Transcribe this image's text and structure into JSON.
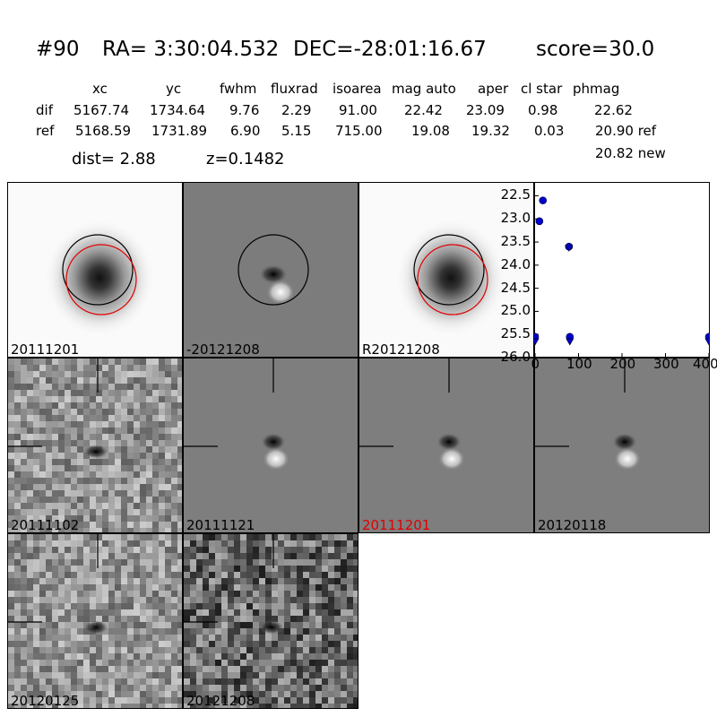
{
  "header": {
    "object_id": "#90",
    "ra": "RA= 3:30:04.532",
    "dec": "DEC=-28:01:16.67",
    "score": "score=30.0"
  },
  "table": {
    "columns": [
      "xc",
      "yc",
      "fwhm",
      "fluxrad",
      "isoarea",
      "mag auto",
      "aper",
      "cl star",
      "phmag"
    ],
    "dif": {
      "label": "dif",
      "values": [
        "5167.74",
        "1734.64",
        "9.76",
        "2.29",
        "91.00",
        "22.42",
        "23.09",
        "0.98",
        "22.62"
      ]
    },
    "ref": {
      "label": "ref",
      "values": [
        "5168.59",
        "1731.89",
        "6.90",
        "5.15",
        "715.00",
        "19.08",
        "19.32",
        "0.03",
        "20.90 ref"
      ]
    },
    "extra": "20.82 new"
  },
  "summary": {
    "dist": "dist=  2.88",
    "z": "z=0.1482"
  },
  "panels": [
    {
      "label": "20111201",
      "style": "galaxy",
      "circles": true
    },
    {
      "label": "-20121208",
      "style": "dipole",
      "circles": true
    },
    {
      "label": "R20121208",
      "style": "galaxy",
      "circles": true
    },
    {
      "label": "20111102",
      "style": "noisy"
    },
    {
      "label": "20111121",
      "style": "dipole_crosshair"
    },
    {
      "label": "20111201",
      "style": "dipole_crosshair",
      "highlight": true
    },
    {
      "label": "20120118",
      "style": "dipole_crosshair"
    },
    {
      "label": "20120125",
      "style": "noisy"
    },
    {
      "label": "20121208",
      "style": "noisy_dark"
    }
  ],
  "chart_data": {
    "type": "scatter",
    "title": "",
    "xlabel": "",
    "ylabel": "",
    "xlim": [
      0,
      400
    ],
    "ylim": [
      26.0,
      22.2
    ],
    "y_inverted": true,
    "x_ticks": [
      "0",
      "100",
      "200",
      "300",
      "400"
    ],
    "y_ticks": [
      "22.5",
      "23.0",
      "23.5",
      "24.0",
      "24.5",
      "25.0",
      "25.5",
      "26.0"
    ],
    "series": [
      {
        "marker": "circle",
        "color": "#0000cc",
        "points": [
          [
            0,
            25.55
          ],
          [
            10,
            23.05
          ],
          [
            18,
            22.6
          ],
          [
            78,
            23.6
          ],
          [
            80,
            25.55
          ],
          [
            400,
            25.55
          ]
        ]
      },
      {
        "marker": "triangle-down",
        "color": "#0000cc",
        "points": [
          [
            0,
            25.65
          ],
          [
            78,
            23.62
          ],
          [
            80,
            25.65
          ],
          [
            400,
            25.65
          ]
        ]
      }
    ]
  }
}
